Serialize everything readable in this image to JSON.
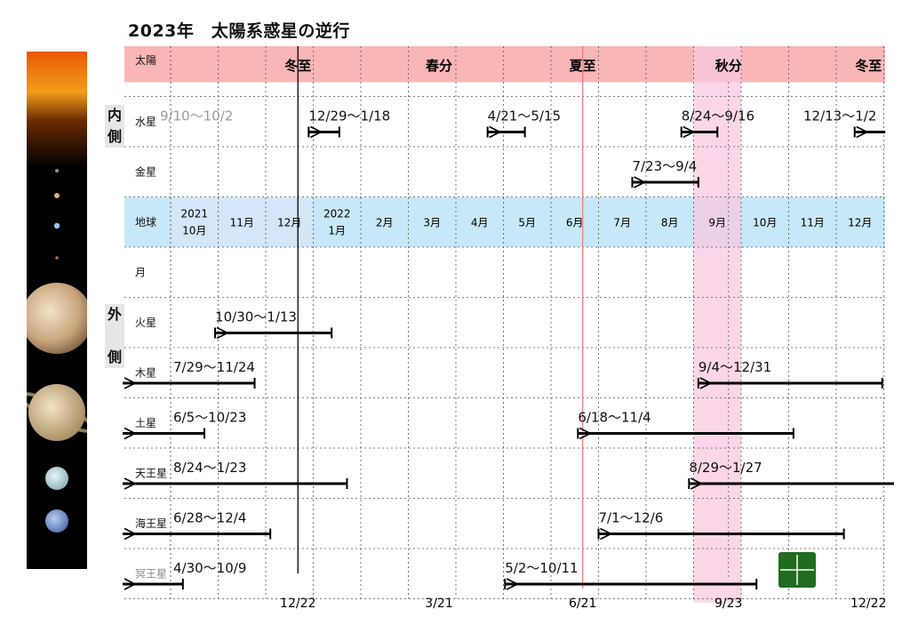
{
  "title": "2023年　太陽系惑星の逆行",
  "side_labels": {
    "inner": [
      "内",
      "側"
    ],
    "outer": [
      "外",
      "側"
    ]
  },
  "colors": {
    "sun_band": "#f9b6b6",
    "earth_band": "#c7e8f8",
    "earth_band_early": "#d4e6f8",
    "autumn_highlight": "#f9c8e2",
    "summer_line": "#f08080",
    "winter_line": "#000000",
    "bar": "#000000",
    "logo": "#1f6b1f"
  },
  "chart_data": {
    "type": "timeline",
    "x_axis": {
      "start": "2021-09-01",
      "end": "2022-12-31",
      "months": [
        {
          "date": "2021-10-01",
          "label": "2021\n10月"
        },
        {
          "date": "2021-11-01",
          "label": "11月"
        },
        {
          "date": "2021-12-01",
          "label": "12月"
        },
        {
          "date": "2022-01-01",
          "label": "2022\n1月"
        },
        {
          "date": "2022-02-01",
          "label": "2月"
        },
        {
          "date": "2022-03-01",
          "label": "3月"
        },
        {
          "date": "2022-04-01",
          "label": "4月"
        },
        {
          "date": "2022-05-01",
          "label": "5月"
        },
        {
          "date": "2022-06-01",
          "label": "6月"
        },
        {
          "date": "2022-07-01",
          "label": "7月"
        },
        {
          "date": "2022-08-01",
          "label": "8月"
        },
        {
          "date": "2022-09-01",
          "label": "9月"
        },
        {
          "date": "2022-10-01",
          "label": "10月"
        },
        {
          "date": "2022-11-01",
          "label": "11月"
        },
        {
          "date": "2022-12-01",
          "label": "12月"
        }
      ],
      "bottom_ticks": [
        {
          "date": "2021-12-22",
          "label": "12/22"
        },
        {
          "date": "2022-03-21",
          "label": "3/21"
        },
        {
          "date": "2022-06-21",
          "label": "6/21"
        },
        {
          "date": "2022-09-23",
          "label": "9/23"
        },
        {
          "date": "2022-12-22",
          "label": "12/22"
        }
      ]
    },
    "seasons": [
      {
        "label": "冬至",
        "date": "2021-12-22"
      },
      {
        "label": "春分",
        "date": "2022-03-21"
      },
      {
        "label": "夏至",
        "date": "2022-06-21"
      },
      {
        "label": "秋分",
        "date": "2022-09-23"
      },
      {
        "label": "冬至",
        "date": "2022-12-22"
      }
    ],
    "autumn_highlight": [
      "2022-09-01",
      "2022-09-30"
    ],
    "rows": [
      {
        "key": "sun",
        "name": "太陽"
      },
      {
        "key": "mercury",
        "name": "水星",
        "periods": [
          {
            "label": "9/10〜10/2",
            "start": "2021-09-10",
            "end": "2021-10-02",
            "faded": true
          },
          {
            "label": "12/29〜1/18",
            "start": "2021-12-29",
            "end": "2022-01-18"
          },
          {
            "label": "4/21〜5/15",
            "start": "2022-04-21",
            "end": "2022-05-15"
          },
          {
            "label": "8/24〜9/16",
            "start": "2022-08-24",
            "end": "2022-09-16"
          },
          {
            "label": "12/13〜1/2",
            "start": "2022-12-13",
            "end": "2023-01-02"
          }
        ]
      },
      {
        "key": "venus",
        "name": "金星",
        "periods": [
          {
            "label": "7/23〜9/4",
            "start": "2022-07-23",
            "end": "2022-09-04"
          }
        ]
      },
      {
        "key": "earth",
        "name": "地球"
      },
      {
        "key": "moon",
        "name": "月"
      },
      {
        "key": "mars",
        "name": "火星",
        "periods": [
          {
            "label": "10/30〜1/13",
            "start": "2021-10-30",
            "end": "2022-01-13"
          }
        ]
      },
      {
        "key": "jupiter",
        "name": "木星",
        "periods": [
          {
            "label": "7/29〜11/24",
            "start": "2021-07-29",
            "end": "2021-11-24"
          },
          {
            "label": "9/4〜12/31",
            "start": "2022-09-04",
            "end": "2022-12-31"
          }
        ]
      },
      {
        "key": "saturn",
        "name": "土星",
        "periods": [
          {
            "label": "6/5〜10/23",
            "start": "2021-06-05",
            "end": "2021-10-23"
          },
          {
            "label": "6/18〜11/4",
            "start": "2022-06-18",
            "end": "2022-11-04"
          }
        ]
      },
      {
        "key": "uranus",
        "name": "天王星",
        "periods": [
          {
            "label": "8/24〜1/23",
            "start": "2021-08-24",
            "end": "2022-01-23"
          },
          {
            "label": "8/29〜1/27",
            "start": "2022-08-29",
            "end": "2023-01-27"
          }
        ]
      },
      {
        "key": "neptune",
        "name": "海王星",
        "periods": [
          {
            "label": "6/28〜12/4",
            "start": "2021-06-28",
            "end": "2021-12-04"
          },
          {
            "label": "7/1〜12/6",
            "start": "2022-07-01",
            "end": "2022-12-06"
          }
        ]
      },
      {
        "key": "pluto",
        "name": "冥王星",
        "faded_name": true,
        "periods": [
          {
            "label": "4/30〜10/9",
            "start": "2021-04-30",
            "end": "2021-10-09"
          },
          {
            "label": "5/2〜10/11",
            "start": "2022-05-02",
            "end": "2022-10-11"
          }
        ]
      }
    ]
  }
}
